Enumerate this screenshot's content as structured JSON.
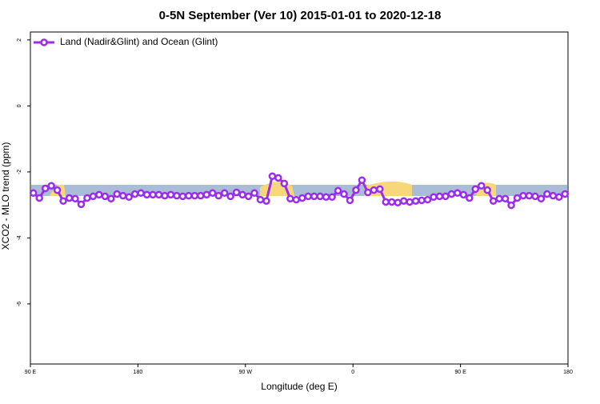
{
  "chart_data": {
    "type": "line",
    "title": "0-5N September (Ver 10)   2015-01-01 to 2020-12-18",
    "x_label": "Longitude (deg E)",
    "y_label": "XCO2 - MLO trend (ppm)",
    "xlim": [
      90,
      540
    ],
    "ylim": [
      -7.82,
      2.24
    ],
    "xticks": [
      {
        "value": 90,
        "label": "90 E"
      },
      180,
      {
        "value": 270,
        "label": "90 W"
      },
      {
        "value": 360,
        "label": "0"
      },
      {
        "value": 450,
        "label": "90 E"
      },
      {
        "value": 540,
        "label": "180"
      }
    ],
    "yticks": [
      -6,
      -4,
      -2,
      0,
      2
    ],
    "legend": "top-left",
    "x": [
      92.5,
      97.5,
      102.5,
      107.5,
      112.5,
      117.5,
      122.5,
      127.5,
      132.5,
      137.5,
      142.5,
      147.5,
      152.5,
      157.5,
      162.5,
      167.5,
      172.5,
      177.5,
      182.5,
      187.5,
      192.5,
      197.5,
      202.5,
      207.5,
      212.5,
      217.5,
      222.5,
      227.5,
      232.5,
      237.5,
      242.5,
      247.5,
      252.5,
      257.5,
      262.5,
      267.5,
      272.5,
      277.5,
      282.5,
      287.5,
      292.5,
      297.5,
      302.5,
      307.5,
      312.5,
      317.5,
      322.5,
      327.5,
      332.5,
      337.5,
      342.5,
      347.5,
      352.5,
      357.5,
      362.5,
      367.5,
      372.5,
      377.5,
      382.5,
      387.5,
      392.5,
      397.5,
      402.5,
      407.5,
      412.5,
      417.5,
      422.5,
      427.5,
      432.5,
      437.5,
      442.5,
      447.5,
      452.5,
      457.5,
      462.5,
      467.5,
      472.5,
      477.5,
      482.5,
      487.5,
      492.5,
      497.5,
      502.5,
      507.5,
      512.5,
      517.5,
      522.5,
      527.5,
      532.5,
      537.5
    ],
    "series": [
      {
        "name": "Land (Nadir&Glint) and Ocean (Glint)",
        "color": "#9a2cee",
        "values": [
          -2.64,
          -2.79,
          -2.5,
          -2.42,
          -2.55,
          -2.88,
          -2.79,
          -2.81,
          -2.98,
          -2.79,
          -2.74,
          -2.69,
          -2.74,
          -2.81,
          -2.67,
          -2.72,
          -2.76,
          -2.67,
          -2.64,
          -2.69,
          -2.69,
          -2.69,
          -2.72,
          -2.69,
          -2.72,
          -2.74,
          -2.72,
          -2.72,
          -2.72,
          -2.69,
          -2.64,
          -2.72,
          -2.64,
          -2.74,
          -2.62,
          -2.69,
          -2.74,
          -2.64,
          -2.84,
          -2.88,
          -2.13,
          -2.18,
          -2.35,
          -2.81,
          -2.84,
          -2.79,
          -2.74,
          -2.74,
          -2.74,
          -2.76,
          -2.76,
          -2.57,
          -2.67,
          -2.86,
          -2.55,
          -2.25,
          -2.62,
          -2.55,
          -2.52,
          -2.91,
          -2.91,
          -2.93,
          -2.88,
          -2.91,
          -2.88,
          -2.86,
          -2.84,
          -2.76,
          -2.74,
          -2.74,
          -2.67,
          -2.64,
          -2.69,
          -2.79,
          -2.52,
          -2.42,
          -2.55,
          -2.88,
          -2.81,
          -2.81,
          -3.01,
          -2.79,
          -2.72,
          -2.72,
          -2.74,
          -2.81,
          -2.67,
          -2.72,
          -2.76,
          -2.67
        ]
      }
    ]
  }
}
